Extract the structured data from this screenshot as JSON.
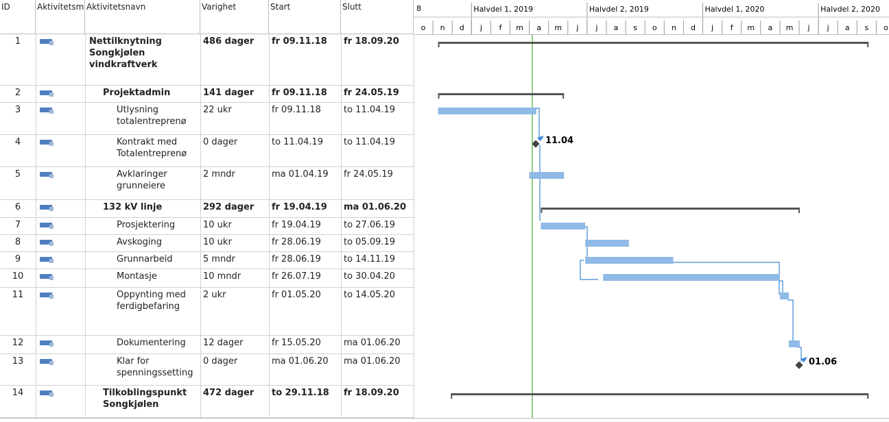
{
  "columns": {
    "id": "ID",
    "mode": "Aktivitetsmodus",
    "name": "Aktivitetsnavn",
    "duration": "Varighet",
    "start": "Start",
    "finish": "Slutt"
  },
  "timescale": {
    "year": "8",
    "halves": [
      "Halvdel 1, 2019",
      "Halvdel 2, 2019",
      "Halvdel 1, 2020",
      "Halvdel 2, 2020"
    ],
    "months": [
      "o",
      "n",
      "d",
      "j",
      "f",
      "m",
      "a",
      "m",
      "j",
      "j",
      "a",
      "s",
      "o",
      "n",
      "d",
      "j",
      "f",
      "m",
      "a",
      "m",
      "j",
      "j",
      "a",
      "s",
      "o"
    ]
  },
  "tasks": [
    {
      "id": "1",
      "name": "Nettilknytning Songkjølen vindkraftverk",
      "duration": "486 dager",
      "start": "fr 09.11.18",
      "finish": "fr 18.09.20",
      "summary": true,
      "level": 0
    },
    {
      "id": "2",
      "name": "Projektadmin",
      "duration": "141 dager",
      "start": "fr 09.11.18",
      "finish": "fr 24.05.19",
      "summary": true,
      "level": 1
    },
    {
      "id": "3",
      "name": "Utlysning totalentreprenø",
      "duration": "22 ukr",
      "start": "fr 09.11.18",
      "finish": "to 11.04.19",
      "summary": false,
      "level": 2
    },
    {
      "id": "4",
      "name": "Kontrakt med Totalentreprenø",
      "duration": "0 dager",
      "start": "to 11.04.19",
      "finish": "to 11.04.19",
      "summary": false,
      "level": 2,
      "milestone": "11.04"
    },
    {
      "id": "5",
      "name": "Avklaringer grunneiere",
      "duration": "2 mndr",
      "start": "ma 01.04.19",
      "finish": "fr 24.05.19",
      "summary": false,
      "level": 2
    },
    {
      "id": "6",
      "name": "132 kV linje",
      "duration": "292 dager",
      "start": "fr 19.04.19",
      "finish": "ma 01.06.20",
      "summary": true,
      "level": 1
    },
    {
      "id": "7",
      "name": "Prosjektering",
      "duration": "10 ukr",
      "start": "fr 19.04.19",
      "finish": "to 27.06.19",
      "summary": false,
      "level": 2
    },
    {
      "id": "8",
      "name": "Avskoging",
      "duration": "10 ukr",
      "start": "fr 28.06.19",
      "finish": "to 05.09.19",
      "summary": false,
      "level": 2
    },
    {
      "id": "9",
      "name": "Grunnarbeid",
      "duration": "5 mndr",
      "start": "fr 28.06.19",
      "finish": "to 14.11.19",
      "summary": false,
      "level": 2
    },
    {
      "id": "10",
      "name": "Montasje",
      "duration": "10 mndr",
      "start": "fr 26.07.19",
      "finish": "to 30.04.20",
      "summary": false,
      "level": 2
    },
    {
      "id": "11",
      "name": "Oppynting med ferdigbefaring",
      "duration": "2 ukr",
      "start": "fr 01.05.20",
      "finish": "to 14.05.20",
      "summary": false,
      "level": 2
    },
    {
      "id": "12",
      "name": "Dokumentering",
      "duration": "12 dager",
      "start": "fr 15.05.20",
      "finish": "ma 01.06.20",
      "summary": false,
      "level": 2
    },
    {
      "id": "13",
      "name": "Klar for spenningssetting",
      "duration": "0 dager",
      "start": "ma 01.06.20",
      "finish": "ma 01.06.20",
      "summary": false,
      "level": 2,
      "milestone": "01.06"
    },
    {
      "id": "14",
      "name": "Tilkoblingspunkt Songkjølen",
      "duration": "472 dager",
      "start": "to 29.11.18",
      "finish": "fr 18.09.20",
      "summary": true,
      "level": 1
    }
  ]
}
